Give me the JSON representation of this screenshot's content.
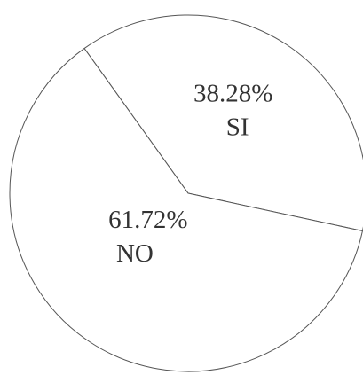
{
  "chart_data": {
    "type": "pie",
    "categories": [
      "SI",
      "NO"
    ],
    "values": [
      38.28,
      61.72
    ],
    "value_labels": [
      "38.28%",
      "61.72%"
    ],
    "color": "#ffffff"
  }
}
